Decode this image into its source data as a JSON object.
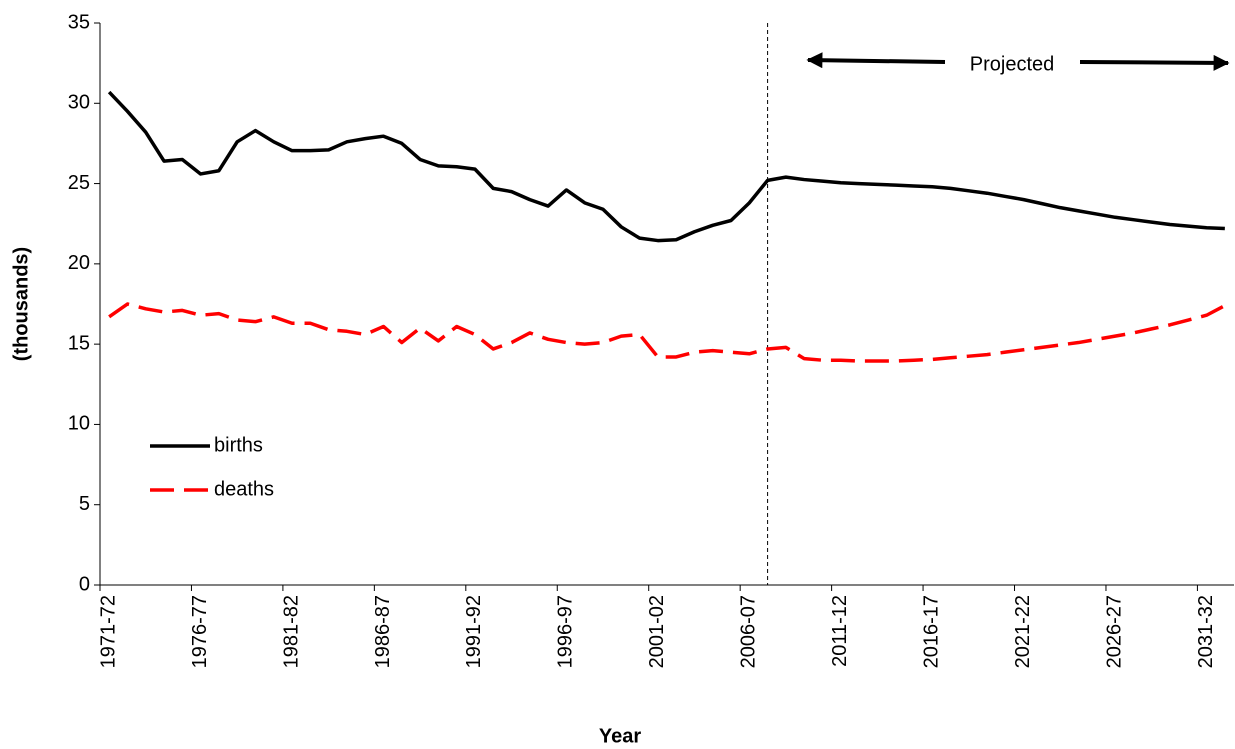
{
  "chart_data": {
    "type": "line",
    "x_label": "Year",
    "y_label": "(thousands)",
    "categories": [
      "1971-72",
      null,
      null,
      null,
      null,
      "1976-77",
      null,
      null,
      null,
      null,
      "1981-82",
      null,
      null,
      null,
      null,
      "1986-87",
      null,
      null,
      null,
      null,
      "1991-92",
      null,
      null,
      null,
      null,
      "1996-97",
      null,
      null,
      null,
      null,
      "2001-02",
      null,
      null,
      null,
      null,
      "2006-07",
      null,
      null,
      null,
      null,
      "2011-12",
      null,
      null,
      null,
      null,
      "2016-17",
      null,
      null,
      null,
      null,
      "2021-22",
      null,
      null,
      null,
      null,
      "2026-27",
      null,
      null,
      null,
      null,
      "2031-32",
      null
    ],
    "series": [
      {
        "name": "births",
        "color": "#000000",
        "dashed": false,
        "values": [
          30.7,
          29.5,
          28.2,
          26.4,
          26.5,
          25.6,
          25.8,
          27.6,
          28.3,
          27.6,
          27.05,
          27.05,
          27.1,
          27.6,
          27.8,
          27.95,
          27.5,
          26.5,
          26.1,
          26.05,
          25.9,
          24.7,
          24.5,
          24.0,
          23.6,
          24.6,
          23.8,
          23.4,
          22.3,
          21.6,
          21.45,
          21.5,
          22.0,
          22.4,
          22.7,
          23.8,
          25.2,
          25.4,
          25.25,
          25.15,
          25.05,
          25.0,
          24.95,
          24.9,
          24.85,
          24.8,
          24.7,
          24.55,
          24.4,
          24.2,
          24.0,
          23.75,
          23.5,
          23.3,
          23.1,
          22.9,
          22.75,
          22.6,
          22.45,
          22.35,
          22.25,
          22.2
        ]
      },
      {
        "name": "deaths",
        "color": "#ff0000",
        "dashed": true,
        "values": [
          16.7,
          17.5,
          17.2,
          17.0,
          17.1,
          16.8,
          16.9,
          16.5,
          16.4,
          16.7,
          16.3,
          16.3,
          15.9,
          15.8,
          15.6,
          16.1,
          15.1,
          16.0,
          15.2,
          16.1,
          15.6,
          14.7,
          15.1,
          15.7,
          15.3,
          15.1,
          15.0,
          15.1,
          15.5,
          15.6,
          14.2,
          14.2,
          14.5,
          14.6,
          14.5,
          14.4,
          14.7,
          14.8,
          14.1,
          14.0,
          14.0,
          13.95,
          13.95,
          13.95,
          14.0,
          14.05,
          14.15,
          14.25,
          14.35,
          14.5,
          14.65,
          14.8,
          14.95,
          15.1,
          15.3,
          15.5,
          15.7,
          15.95,
          16.2,
          16.5,
          16.8,
          17.4
        ]
      }
    ],
    "ylim": [
      0,
      35
    ],
    "yticks": [
      0,
      5,
      10,
      15,
      20,
      25,
      30,
      35
    ],
    "grid": false,
    "legend": "lower-left",
    "annotation": {
      "text": "Projected",
      "from_category_index": 36
    }
  }
}
